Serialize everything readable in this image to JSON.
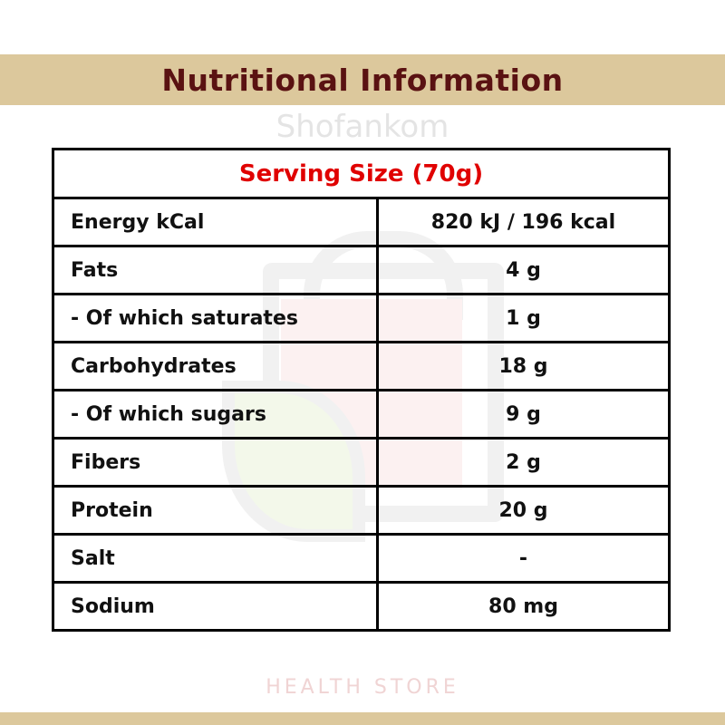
{
  "header": {
    "title": "Nutritional Information"
  },
  "watermark": {
    "name": "Shofankom",
    "tagline": "HEALTH STORE"
  },
  "table": {
    "serving_size": "Serving Size (70g)",
    "rows": [
      {
        "label": "Energy kCal",
        "value": "820 kJ / 196 kcal"
      },
      {
        "label": "Fats",
        "value": "4 g"
      },
      {
        "label": "- Of which saturates",
        "value": "1 g"
      },
      {
        "label": "Carbohydrates",
        "value": "18 g"
      },
      {
        "label": "- Of which sugars",
        "value": "9 g"
      },
      {
        "label": "Fibers",
        "value": "2 g"
      },
      {
        "label": "Protein",
        "value": "20 g"
      },
      {
        "label": "Salt",
        "value": "-"
      },
      {
        "label": "Sodium",
        "value": "80 mg"
      }
    ]
  },
  "colors": {
    "band": "#dcc89c",
    "title": "#5a1212",
    "serving": "#e00000"
  }
}
